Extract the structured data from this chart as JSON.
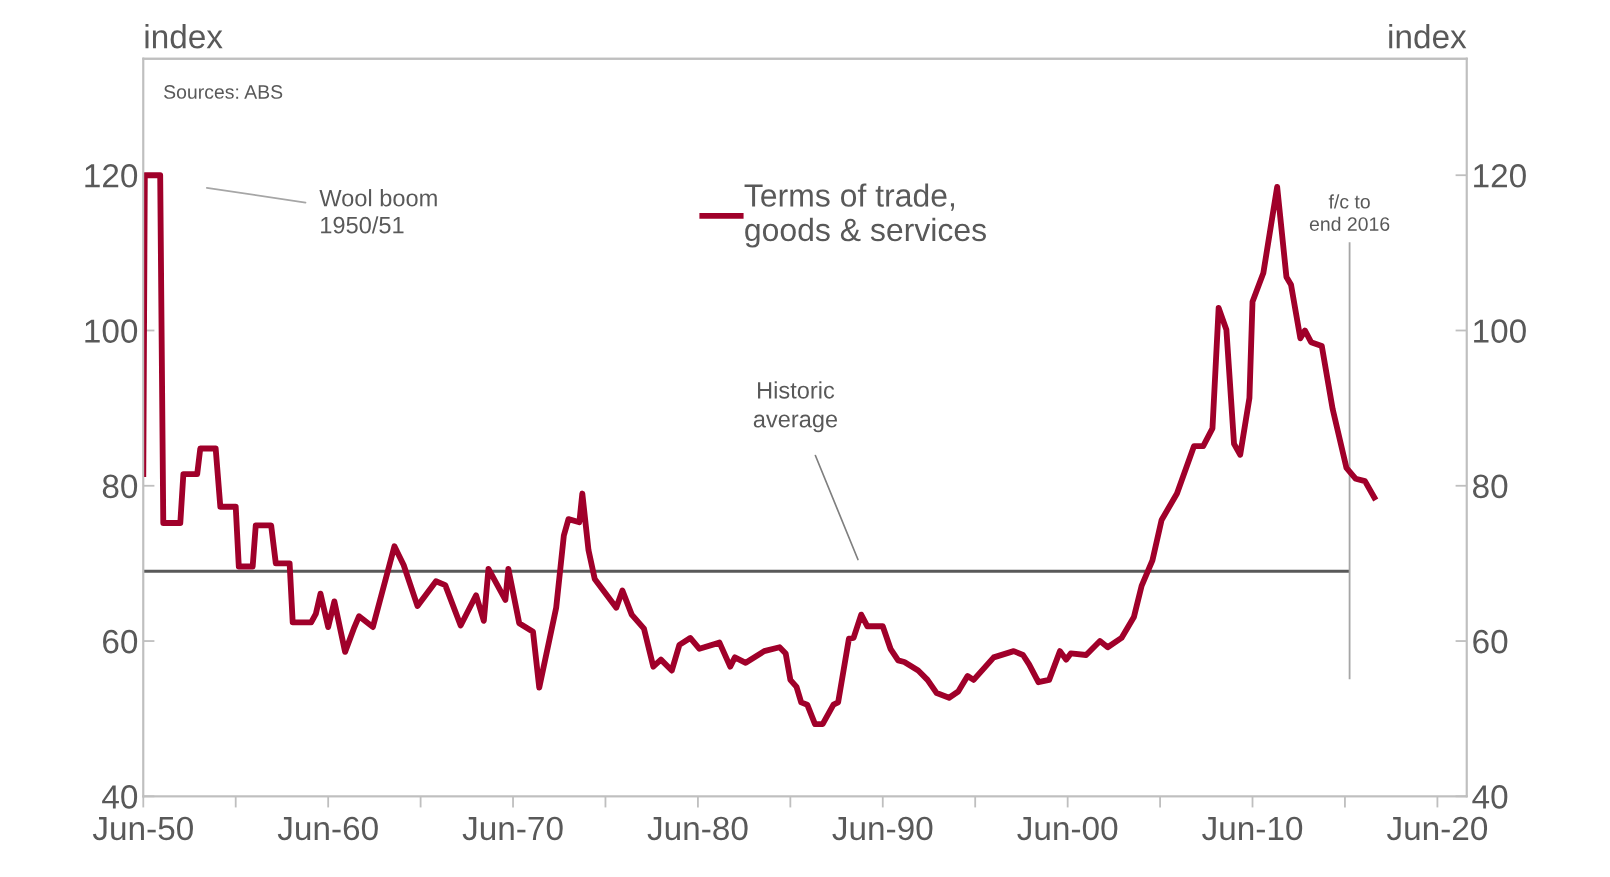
{
  "chart_data": {
    "type": "line",
    "ylabel": "index",
    "y2label": "index",
    "x": [
      "1950-06",
      "1950-07",
      "1951-05",
      "1951-07",
      "1952-06",
      "1952-08",
      "1953-05",
      "1953-07",
      "1954-05",
      "1954-08",
      "1955-06",
      "1955-08",
      "1956-05",
      "1956-07",
      "1957-05",
      "1957-08",
      "1958-05",
      "1958-07",
      "1959-07",
      "1959-10",
      "1960-01",
      "1960-06",
      "1960-10",
      "1961-05",
      "1961-11",
      "1962-02",
      "1962-11",
      "1964-01",
      "1964-07",
      "1965-04",
      "1966-04",
      "1966-10",
      "1967-08",
      "1968-06",
      "1968-11",
      "1969-02",
      "1970-01",
      "1970-03",
      "1970-10",
      "1971-07",
      "1971-11",
      "1972-10",
      "1973-03",
      "1973-06",
      "1974-01",
      "1974-03",
      "1974-07",
      "1974-11",
      "1976-01",
      "1976-05",
      "1976-11",
      "1977-07",
      "1978-01",
      "1978-06",
      "1979-01",
      "1979-06",
      "1980-01",
      "1980-07",
      "1981-08",
      "1982-03",
      "1982-06",
      "1983-01",
      "1984-01",
      "1984-11",
      "1985-03",
      "1985-06",
      "1985-10",
      "1986-01",
      "1986-05",
      "1986-10",
      "1987-03",
      "1987-10",
      "1988-01",
      "1988-08",
      "1988-11",
      "1989-04",
      "1989-08",
      "1990-06",
      "1990-11",
      "1991-04",
      "1991-08",
      "1992-05",
      "1992-11",
      "1993-05",
      "1994-01",
      "1994-07",
      "1995-01",
      "1995-05",
      "1996-06",
      "1997-07",
      "1998-01",
      "1998-05",
      "1998-11",
      "1999-06",
      "2000-01",
      "2000-05",
      "2000-08",
      "2001-06",
      "2002-03",
      "2002-08",
      "2003-05",
      "2004-01",
      "2004-06",
      "2005-01",
      "2005-07",
      "2006-05",
      "2007-04",
      "2007-10",
      "2008-04",
      "2008-08",
      "2009-01",
      "2009-06",
      "2009-10",
      "2010-04",
      "2010-06",
      "2011-01",
      "2011-10",
      "2012-04",
      "2012-07",
      "2013-01",
      "2013-04",
      "2013-08",
      "2014-03",
      "2014-10",
      "2015-07",
      "2016-01",
      "2016-07",
      "2017-01"
    ],
    "series": [
      {
        "name": "Terms of trade,\ngoods & services",
        "color": "#a0002a",
        "values": [
          81.5,
          120,
          120,
          75.2,
          75.2,
          81.5,
          81.5,
          84.8,
          84.8,
          77.3,
          77.3,
          69.6,
          69.6,
          74.9,
          74.9,
          70,
          70,
          62.4,
          62.4,
          63.5,
          66.1,
          61.8,
          65.1,
          58.6,
          61.8,
          63.2,
          61.8,
          72.2,
          69.8,
          64.5,
          67.7,
          67.2,
          62.0,
          65.9,
          62.6,
          69.3,
          65.3,
          69.3,
          62.3,
          61.2,
          54.0,
          64.3,
          73.6,
          75.7,
          75.3,
          79.0,
          71.7,
          68.0,
          64.3,
          66.5,
          63.4,
          61.6,
          56.7,
          57.6,
          56.2,
          59.5,
          60.4,
          59.0,
          59.8,
          56.7,
          57.9,
          57.2,
          58.7,
          59.2,
          58.4,
          55.0,
          54.1,
          52.1,
          51.8,
          49.3,
          49.3,
          51.8,
          52.1,
          60.3,
          60.4,
          63.4,
          61.9,
          61.9,
          59.0,
          57.5,
          57.3,
          56.2,
          55.0,
          53.3,
          52.7,
          53.5,
          55.5,
          55.0,
          57.9,
          58.7,
          58.2,
          57.0,
          54.7,
          55.0,
          58.7,
          57.6,
          58.4,
          58.2,
          60.0,
          59.2,
          60.4,
          63.1,
          67.1,
          70.4,
          75.6,
          79.0,
          85.1,
          85.1,
          87.4,
          102.9,
          100.1,
          85.4,
          84.0,
          91.3,
          103.7,
          107.4,
          118.5,
          106.9,
          105.9,
          99.0,
          100.0,
          98.5,
          98.0,
          89.9,
          82.3,
          80.9,
          80.6,
          78.5
        ]
      }
    ],
    "xlim": [
      "1950-06",
      "2022-01"
    ],
    "xticks": [
      {
        "value": "1950-06",
        "label": "Jun-50"
      },
      {
        "value": "1955-06",
        "label": null
      },
      {
        "value": "1960-06",
        "label": "Jun-60"
      },
      {
        "value": "1965-06",
        "label": null
      },
      {
        "value": "1970-06",
        "label": "Jun-70"
      },
      {
        "value": "1975-06",
        "label": null
      },
      {
        "value": "1980-06",
        "label": "Jun-80"
      },
      {
        "value": "1985-06",
        "label": null
      },
      {
        "value": "1990-06",
        "label": "Jun-90"
      },
      {
        "value": "1995-06",
        "label": null
      },
      {
        "value": "2000-06",
        "label": "Jun-00"
      },
      {
        "value": "2005-06",
        "label": null
      },
      {
        "value": "2010-06",
        "label": "Jun-10"
      },
      {
        "value": "2015-06",
        "label": null
      },
      {
        "value": "2020-06",
        "label": "Jun-20"
      }
    ],
    "ylim": [
      40,
      135
    ],
    "yticks": [
      40,
      60,
      80,
      100,
      120
    ],
    "y2lim": [
      40,
      135
    ],
    "y2ticks": [
      40,
      60,
      80,
      100,
      120
    ],
    "ref_lines": [
      {
        "axis": "y",
        "value": 69,
        "label": "Historic\naverage",
        "color": "#595959"
      },
      {
        "axis": "x",
        "value": "2015-09",
        "label": "f/c to\nend 2016",
        "color": "#a6a6a6"
      }
    ],
    "annotations": [
      "Sources: ABS",
      "Wool boom\n1950/51"
    ],
    "legend": "top",
    "grid": false,
    "marker": "none",
    "line_style": "solid"
  }
}
